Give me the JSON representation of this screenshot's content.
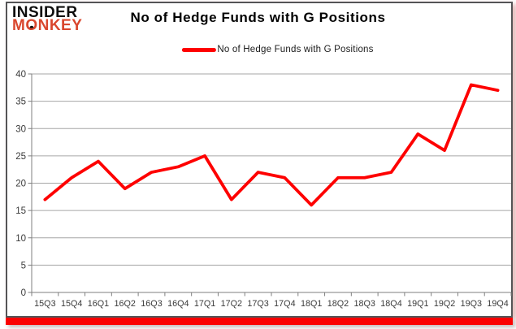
{
  "logo": {
    "line1": "INSIDER",
    "line2": "MONKEY"
  },
  "header": {
    "title": "No of Hedge Funds with G Positions"
  },
  "legend": {
    "label": "No of Hedge Funds with G Positions"
  },
  "colors": {
    "series_line": "#fe0000",
    "bottom_bar": "#fb0101",
    "card_border": "#545456",
    "gridline": "#a6a6a6",
    "axis": "#7f7f7f",
    "tick_label": "#3a3a3a",
    "logo_monkey": "#d9472e"
  },
  "chart_data": {
    "type": "line",
    "title": "No of Hedge Funds with G Positions",
    "categories": [
      "15Q3",
      "15Q4",
      "16Q1",
      "16Q2",
      "16Q3",
      "16Q4",
      "17Q1",
      "17Q2",
      "17Q3",
      "17Q4",
      "18Q1",
      "18Q2",
      "18Q3",
      "18Q4",
      "19Q1",
      "19Q2",
      "19Q3",
      "19Q4"
    ],
    "series": [
      {
        "name": "No of Hedge Funds with G Positions",
        "color": "#fe0000",
        "values": [
          17,
          21,
          24,
          19,
          22,
          23,
          25,
          17,
          22,
          21,
          16,
          21,
          21,
          22,
          29,
          26,
          38,
          37
        ]
      }
    ],
    "xlabel": "",
    "ylabel": "",
    "ylim": [
      0,
      40
    ],
    "ytick_step": 5,
    "grid": true,
    "legend_position": "top-center"
  }
}
